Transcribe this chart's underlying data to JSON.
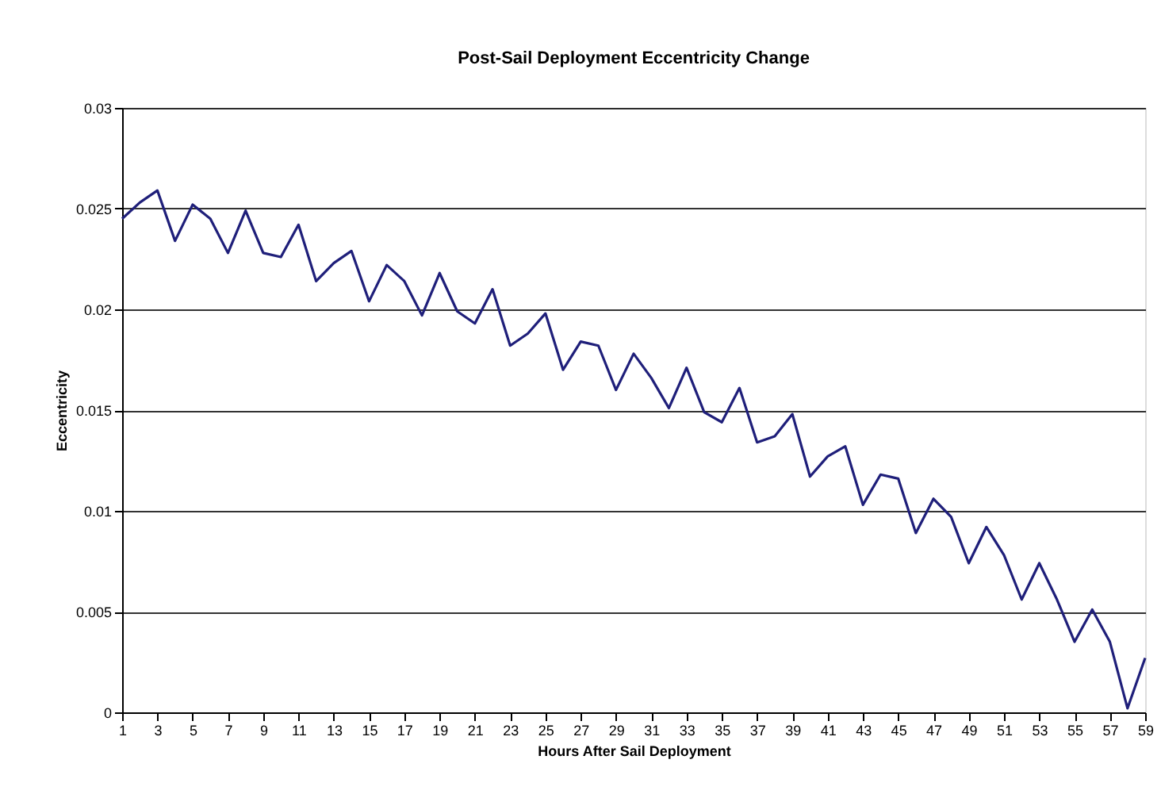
{
  "chart_data": {
    "type": "line",
    "title": "Post-Sail Deployment Eccentricity Change",
    "xlabel": "Hours After Sail Deployment",
    "ylabel": "Eccentricity",
    "x": [
      1,
      2,
      3,
      4,
      5,
      6,
      7,
      8,
      9,
      10,
      11,
      12,
      13,
      14,
      15,
      16,
      17,
      18,
      19,
      20,
      21,
      22,
      23,
      24,
      25,
      26,
      27,
      28,
      29,
      30,
      31,
      32,
      33,
      34,
      35,
      36,
      37,
      38,
      39,
      40,
      41,
      42,
      43,
      44,
      45,
      46,
      47,
      48,
      49,
      50,
      51,
      52,
      53,
      54,
      55,
      56,
      57,
      58,
      59
    ],
    "series": [
      {
        "color": "#1f1f7a",
        "values": [
          0.0245,
          0.0253,
          0.0259,
          0.0234,
          0.0252,
          0.0245,
          0.0228,
          0.0249,
          0.0228,
          0.0226,
          0.0242,
          0.0214,
          0.0223,
          0.0229,
          0.0204,
          0.0222,
          0.0214,
          0.0197,
          0.0218,
          0.0199,
          0.0193,
          0.021,
          0.0182,
          0.0188,
          0.0198,
          0.017,
          0.0184,
          0.0182,
          0.016,
          0.0178,
          0.0166,
          0.0151,
          0.0171,
          0.0149,
          0.0144,
          0.0161,
          0.0134,
          0.0137,
          0.0148,
          0.0117,
          0.0127,
          0.0132,
          0.0103,
          0.0118,
          0.0116,
          0.0089,
          0.0106,
          0.0097,
          0.0074,
          0.0092,
          0.0078,
          0.0056,
          0.0074,
          0.0056,
          0.0035,
          0.0051,
          0.0035,
          0.0002,
          0.0027
        ]
      }
    ],
    "xlim": [
      1,
      59
    ],
    "xticks": [
      1,
      3,
      5,
      7,
      9,
      11,
      13,
      15,
      17,
      19,
      21,
      23,
      25,
      27,
      29,
      31,
      33,
      35,
      37,
      39,
      41,
      43,
      45,
      47,
      49,
      51,
      53,
      55,
      57,
      59
    ],
    "ylim": [
      0,
      0.03
    ],
    "yticks": [
      0,
      0.005,
      0.01,
      0.015,
      0.02,
      0.025,
      0.03
    ],
    "grid": "y",
    "marker": "none",
    "line_style": "solid"
  }
}
